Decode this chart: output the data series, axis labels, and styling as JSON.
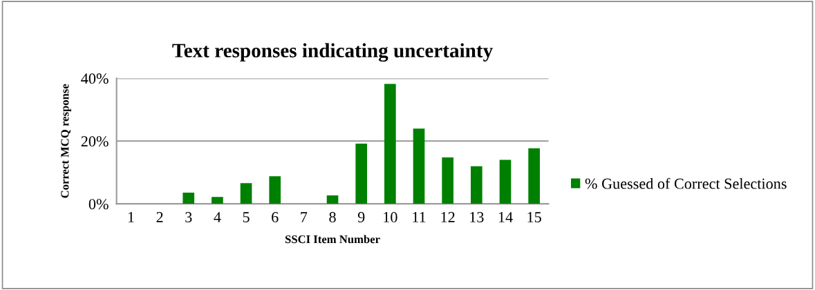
{
  "chart_data": {
    "type": "bar",
    "title": "Text responses indicating uncertainty",
    "xlabel": "SSCI Item Number",
    "ylabel": "Correct MCQ response",
    "categories": [
      "1",
      "2",
      "3",
      "4",
      "5",
      "6",
      "7",
      "8",
      "9",
      "10",
      "11",
      "12",
      "13",
      "14",
      "15"
    ],
    "series": [
      {
        "name": "% Guessed of Correct Selections",
        "color": "#008000",
        "values": [
          0,
          0,
          3.6,
          2.2,
          6.6,
          8.8,
          0,
          2.7,
          19.2,
          38.2,
          24.0,
          14.8,
          12.0,
          14.0,
          17.7
        ]
      }
    ],
    "ylim": [
      0,
      40
    ],
    "yticks": [
      {
        "value": 0,
        "label": "0%"
      },
      {
        "value": 20,
        "label": "20%"
      },
      {
        "value": 40,
        "label": "40%"
      }
    ],
    "grid": "y",
    "legend": "right"
  }
}
